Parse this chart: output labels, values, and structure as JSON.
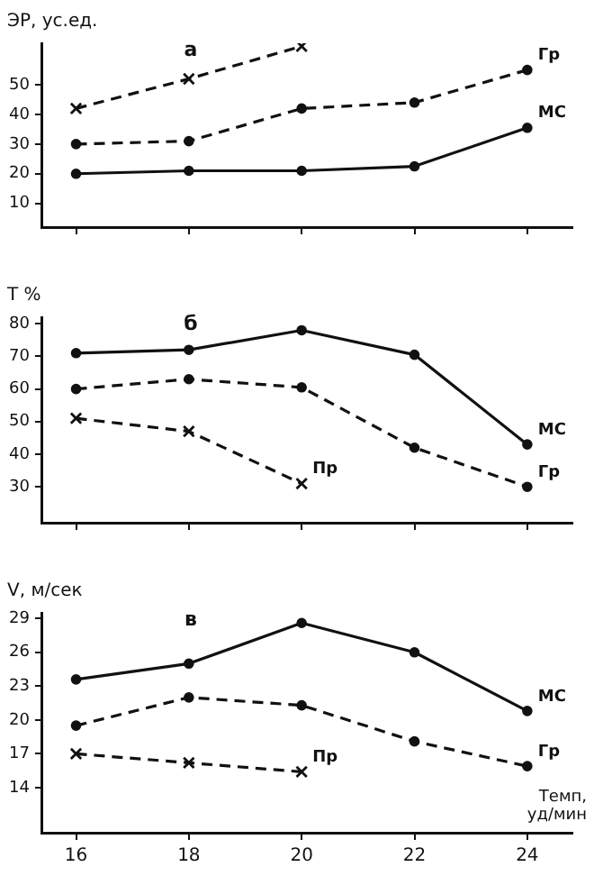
{
  "chart_data": [
    {
      "type": "line",
      "title": "а",
      "ylabel": "ЭР, ус.ед.",
      "x": [
        16,
        18,
        20,
        22,
        24
      ],
      "xlim": [
        15.4,
        24.8
      ],
      "xticks": [
        16,
        18,
        20,
        22,
        24
      ],
      "ylim": [
        2,
        64
      ],
      "yticks": [
        10,
        20,
        30,
        40,
        50
      ],
      "tick_labels": "y",
      "grid": false,
      "legend": false,
      "series": [
        {
          "name": "МС",
          "color": "#111111",
          "values": [
            20,
            21,
            21,
            22.5,
            35.5
          ],
          "line_style": "solid",
          "marker": "circle"
        },
        {
          "name": "Гр",
          "color": "#111111",
          "values": [
            30,
            31,
            42,
            44,
            55
          ],
          "line_style": "dashed",
          "marker": "circle"
        },
        {
          "color": "#111111",
          "values": [
            42,
            52,
            63,
            null,
            null
          ],
          "line_style": "dashed",
          "marker": "cross"
        }
      ]
    },
    {
      "type": "line",
      "title": "б",
      "ylabel": "T %",
      "x": [
        16,
        18,
        20,
        22,
        24
      ],
      "xlim": [
        15.4,
        24.8
      ],
      "xticks": [
        16,
        18,
        20,
        22,
        24
      ],
      "ylim": [
        19,
        82
      ],
      "yticks": [
        30,
        40,
        50,
        60,
        70,
        80
      ],
      "tick_labels": "y",
      "grid": false,
      "legend": false,
      "series": [
        {
          "name": "МС",
          "color": "#111111",
          "values": [
            71,
            72,
            78,
            70.5,
            43
          ],
          "line_style": "solid",
          "marker": "circle"
        },
        {
          "name": "Гр",
          "color": "#111111",
          "values": [
            60,
            63,
            60.5,
            42,
            30
          ],
          "line_style": "dashed",
          "marker": "circle"
        },
        {
          "name": "Пр",
          "color": "#111111",
          "values": [
            51,
            47,
            31,
            null,
            null
          ],
          "line_style": "dashed",
          "marker": "cross"
        }
      ]
    },
    {
      "type": "line",
      "title": "в",
      "ylabel": "V, м/сек",
      "xlabel": "Темп, уд/мин",
      "x": [
        16,
        18,
        20,
        22,
        24
      ],
      "xlim": [
        15.4,
        24.8
      ],
      "xticks": [
        16,
        18,
        20,
        22,
        24
      ],
      "ylim": [
        10,
        29.5
      ],
      "yticks": [
        14,
        17,
        20,
        23,
        26,
        29
      ],
      "grid": false,
      "legend": false,
      "series": [
        {
          "name": "МС",
          "color": "#111111",
          "values": [
            23.6,
            25,
            28.6,
            26,
            20.8
          ],
          "line_style": "solid",
          "marker": "circle"
        },
        {
          "name": "Гр",
          "color": "#111111",
          "values": [
            19.5,
            22,
            21.3,
            18.1,
            15.9
          ],
          "line_style": "dashed",
          "marker": "circle"
        },
        {
          "name": "Пр",
          "color": "#111111",
          "values": [
            17,
            16.2,
            15.4,
            null,
            null
          ],
          "line_style": "dashed",
          "marker": "cross"
        }
      ]
    }
  ]
}
